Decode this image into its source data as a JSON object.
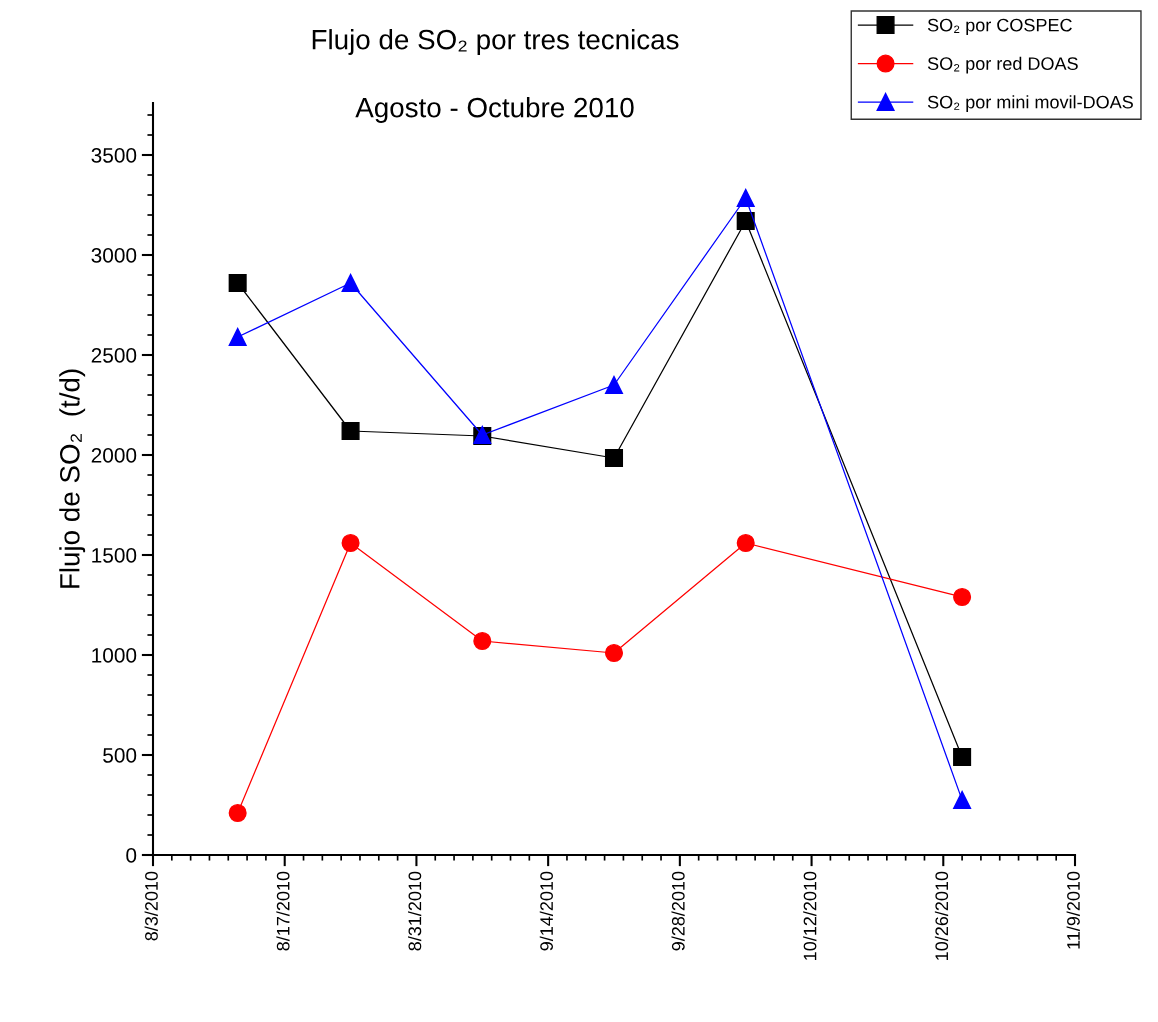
{
  "chart_data": {
    "type": "line",
    "title": "Flujo de SO₂ por tres tecnicas",
    "subtitle": "Agosto - Octubre 2010",
    "ylabel": "Flujo de SO₂  (t/d)",
    "x": [
      "2010-08-12",
      "2010-08-24",
      "2010-09-07",
      "2010-09-21",
      "2010-10-05",
      "2010-10-28"
    ],
    "series": [
      {
        "name": "SO₂ por COSPEC",
        "color": "#000000",
        "marker": "square",
        "values": [
          2860,
          2120,
          2095,
          1985,
          3170,
          490
        ]
      },
      {
        "name": "SO₂ por red DOAS",
        "color": "#ff0000",
        "marker": "circle",
        "values": [
          210,
          1560,
          1070,
          1010,
          1560,
          1290
        ]
      },
      {
        "name": "SO₂ por mini movil-DOAS",
        "color": "#0000ff",
        "marker": "triangle",
        "values": [
          2590,
          2860,
          2100,
          2350,
          3285,
          275
        ]
      }
    ],
    "xlim": [
      "2010-08-03",
      "2010-11-09"
    ],
    "xticks": [
      {
        "value": "2010-08-03",
        "label": "8/3/2010"
      },
      {
        "value": "2010-08-17",
        "label": "8/17/2010"
      },
      {
        "value": "2010-08-31",
        "label": "8/31/2010"
      },
      {
        "value": "2010-09-14",
        "label": "9/14/2010"
      },
      {
        "value": "2010-09-28",
        "label": "9/28/2010"
      },
      {
        "value": "2010-10-12",
        "label": "10/12/2010"
      },
      {
        "value": "2010-10-26",
        "label": "10/26/2010"
      },
      {
        "value": "2010-11-09",
        "label": "11/9/2010"
      }
    ],
    "ylim": [
      0,
      3760
    ],
    "yticks": [
      0,
      500,
      1000,
      1500,
      2000,
      2500,
      3000,
      3500
    ],
    "grid": false,
    "legend": "top right",
    "line_style": "solid"
  }
}
